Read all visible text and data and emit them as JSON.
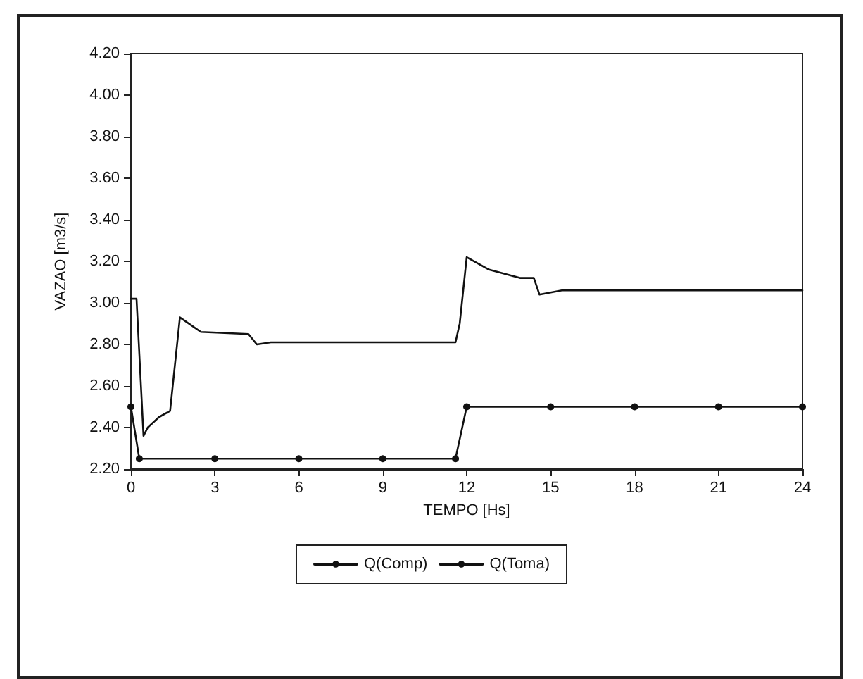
{
  "chart_data": {
    "type": "line",
    "xlabel": "TEMPO [Hs]",
    "ylabel": "VAZAO [m3/s]",
    "series": [
      {
        "name": "Q(Comp)",
        "color": "#111111",
        "marker": "none",
        "x": [
          0,
          0.2,
          0.45,
          0.6,
          1.0,
          1.4,
          1.75,
          2.5,
          4.2,
          4.5,
          5,
          11.6,
          11.75,
          12.0,
          12.8,
          13.9,
          14.4,
          14.6,
          15.4,
          24
        ],
        "values": [
          3.02,
          3.02,
          2.36,
          2.4,
          2.45,
          2.48,
          2.93,
          2.86,
          2.85,
          2.8,
          2.81,
          2.81,
          2.9,
          3.22,
          3.16,
          3.12,
          3.12,
          3.04,
          3.06,
          3.06
        ]
      },
      {
        "name": "Q(Toma)",
        "color": "#111111",
        "marker": "circle",
        "x": [
          0,
          0.3,
          3,
          6,
          9,
          11.6,
          12,
          15,
          18,
          21,
          24
        ],
        "values": [
          2.5,
          2.25,
          2.25,
          2.25,
          2.25,
          2.25,
          2.5,
          2.5,
          2.5,
          2.5,
          2.5
        ]
      }
    ],
    "xlim": [
      0,
      24
    ],
    "xticks": [
      0,
      3,
      6,
      9,
      12,
      15,
      18,
      21,
      24
    ],
    "ylim": [
      2.2,
      4.2
    ],
    "yticks": [
      {
        "value": 2.2,
        "label": "2.20"
      },
      {
        "value": 2.4,
        "label": "2.40"
      },
      {
        "value": 2.6,
        "label": "2.60"
      },
      {
        "value": 2.8,
        "label": "2.80"
      },
      {
        "value": 3.0,
        "label": "3.00"
      },
      {
        "value": 3.2,
        "label": "3.20"
      },
      {
        "value": 3.4,
        "label": "3.40"
      },
      {
        "value": 3.6,
        "label": "3.60"
      },
      {
        "value": 3.8,
        "label": "3.80"
      },
      {
        "value": 4.0,
        "label": "4.00"
      },
      {
        "value": 4.2,
        "label": "4.20"
      }
    ],
    "grid": false,
    "legend": "bottom",
    "line_style": "solid"
  }
}
